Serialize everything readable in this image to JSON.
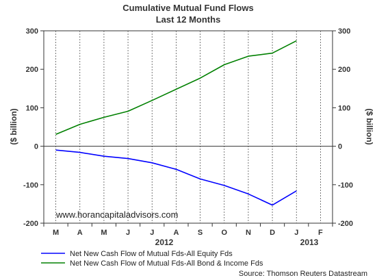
{
  "chart_data": {
    "type": "line",
    "title": "Cumulative Mutual Fund Flows",
    "subtitle": "Last 12 Months",
    "ylabel_left": "($ billion)",
    "ylabel_right": "($ billion)",
    "ylim": [
      -200,
      300
    ],
    "yticks": [
      "300",
      "200",
      "100",
      "0",
      "-100",
      "-200"
    ],
    "categories": [
      "M",
      "A",
      "M",
      "J",
      "J",
      "A",
      "S",
      "O",
      "N",
      "D",
      "J",
      "F"
    ],
    "year_labels": [
      "2012",
      "2013"
    ],
    "grid": true,
    "legend_position": "bottom",
    "series": [
      {
        "name": "Net New Cash Flow of Mutual Fds-All Equity Fds",
        "color": "#0000ff",
        "values": [
          -10,
          -16,
          -26,
          -32,
          -43,
          -60,
          -85,
          -102,
          -124,
          -153,
          -116,
          null
        ]
      },
      {
        "name": "Net New Cash Flow of Mutual Fds-All Bond & Income Fds",
        "color": "#008000",
        "values": [
          31,
          57,
          75,
          91,
          119,
          148,
          177,
          212,
          234,
          242,
          274,
          null
        ]
      }
    ]
  },
  "watermark": "www.horancapitaladvisors.com",
  "source": "Source:  Thomson Reuters Datastream"
}
